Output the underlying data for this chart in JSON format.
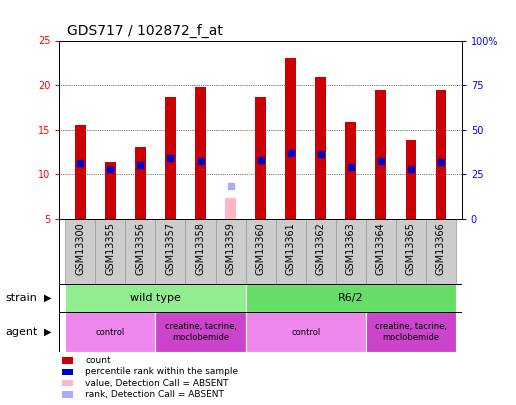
{
  "title": "GDS717 / 102872_f_at",
  "samples": [
    "GSM13300",
    "GSM13355",
    "GSM13356",
    "GSM13357",
    "GSM13358",
    "GSM13359",
    "GSM13360",
    "GSM13361",
    "GSM13362",
    "GSM13363",
    "GSM13364",
    "GSM13365",
    "GSM13366"
  ],
  "counts": [
    15.5,
    11.4,
    13.0,
    18.7,
    19.8,
    null,
    18.7,
    23.0,
    20.9,
    15.8,
    19.5,
    13.8,
    19.4
  ],
  "absent_count": 7.3,
  "absent_rank": 8.7,
  "absent_sample_idx": 5,
  "percentile_ranks": [
    11.2,
    10.6,
    11.0,
    11.8,
    11.5,
    null,
    11.6,
    12.4,
    12.3,
    10.8,
    11.5,
    10.6,
    11.4
  ],
  "ylim_left": [
    5,
    25
  ],
  "ylim_right": [
    0,
    100
  ],
  "yticks_left": [
    5,
    10,
    15,
    20,
    25
  ],
  "yticks_right": [
    0,
    25,
    50,
    75,
    100
  ],
  "ytick_labels_right": [
    "0",
    "25",
    "50",
    "75",
    "100%"
  ],
  "bar_color": "#CC0000",
  "absent_bar_color": "#FFB6C1",
  "rank_color": "#0000CC",
  "absent_rank_color": "#AAAAFF",
  "strain_groups": [
    {
      "label": "wild type",
      "start": 0,
      "end": 5,
      "color": "#90EE90"
    },
    {
      "label": "R6/2",
      "start": 6,
      "end": 12,
      "color": "#66DD66"
    }
  ],
  "agent_groups": [
    {
      "label": "control",
      "start": 0,
      "end": 2,
      "color": "#EE88EE"
    },
    {
      "label": "creatine, tacrine,\nmoclobemide",
      "start": 3,
      "end": 5,
      "color": "#CC44CC"
    },
    {
      "label": "control",
      "start": 6,
      "end": 9,
      "color": "#EE88EE"
    },
    {
      "label": "creatine, tacrine,\nmoclobemide",
      "start": 10,
      "end": 12,
      "color": "#CC44CC"
    }
  ],
  "legend_items": [
    {
      "color": "#CC0000",
      "label": "count"
    },
    {
      "color": "#0000CC",
      "label": "percentile rank within the sample"
    },
    {
      "color": "#FFB6C1",
      "label": "value, Detection Call = ABSENT"
    },
    {
      "color": "#AAAAFF",
      "label": "rank, Detection Call = ABSENT"
    }
  ],
  "title_fontsize": 10,
  "tick_fontsize": 7,
  "label_fontsize": 8,
  "bar_width": 0.35,
  "rank_marker_size": 4,
  "cell_bg_color": "#CCCCCC",
  "cell_edge_color": "#999999"
}
